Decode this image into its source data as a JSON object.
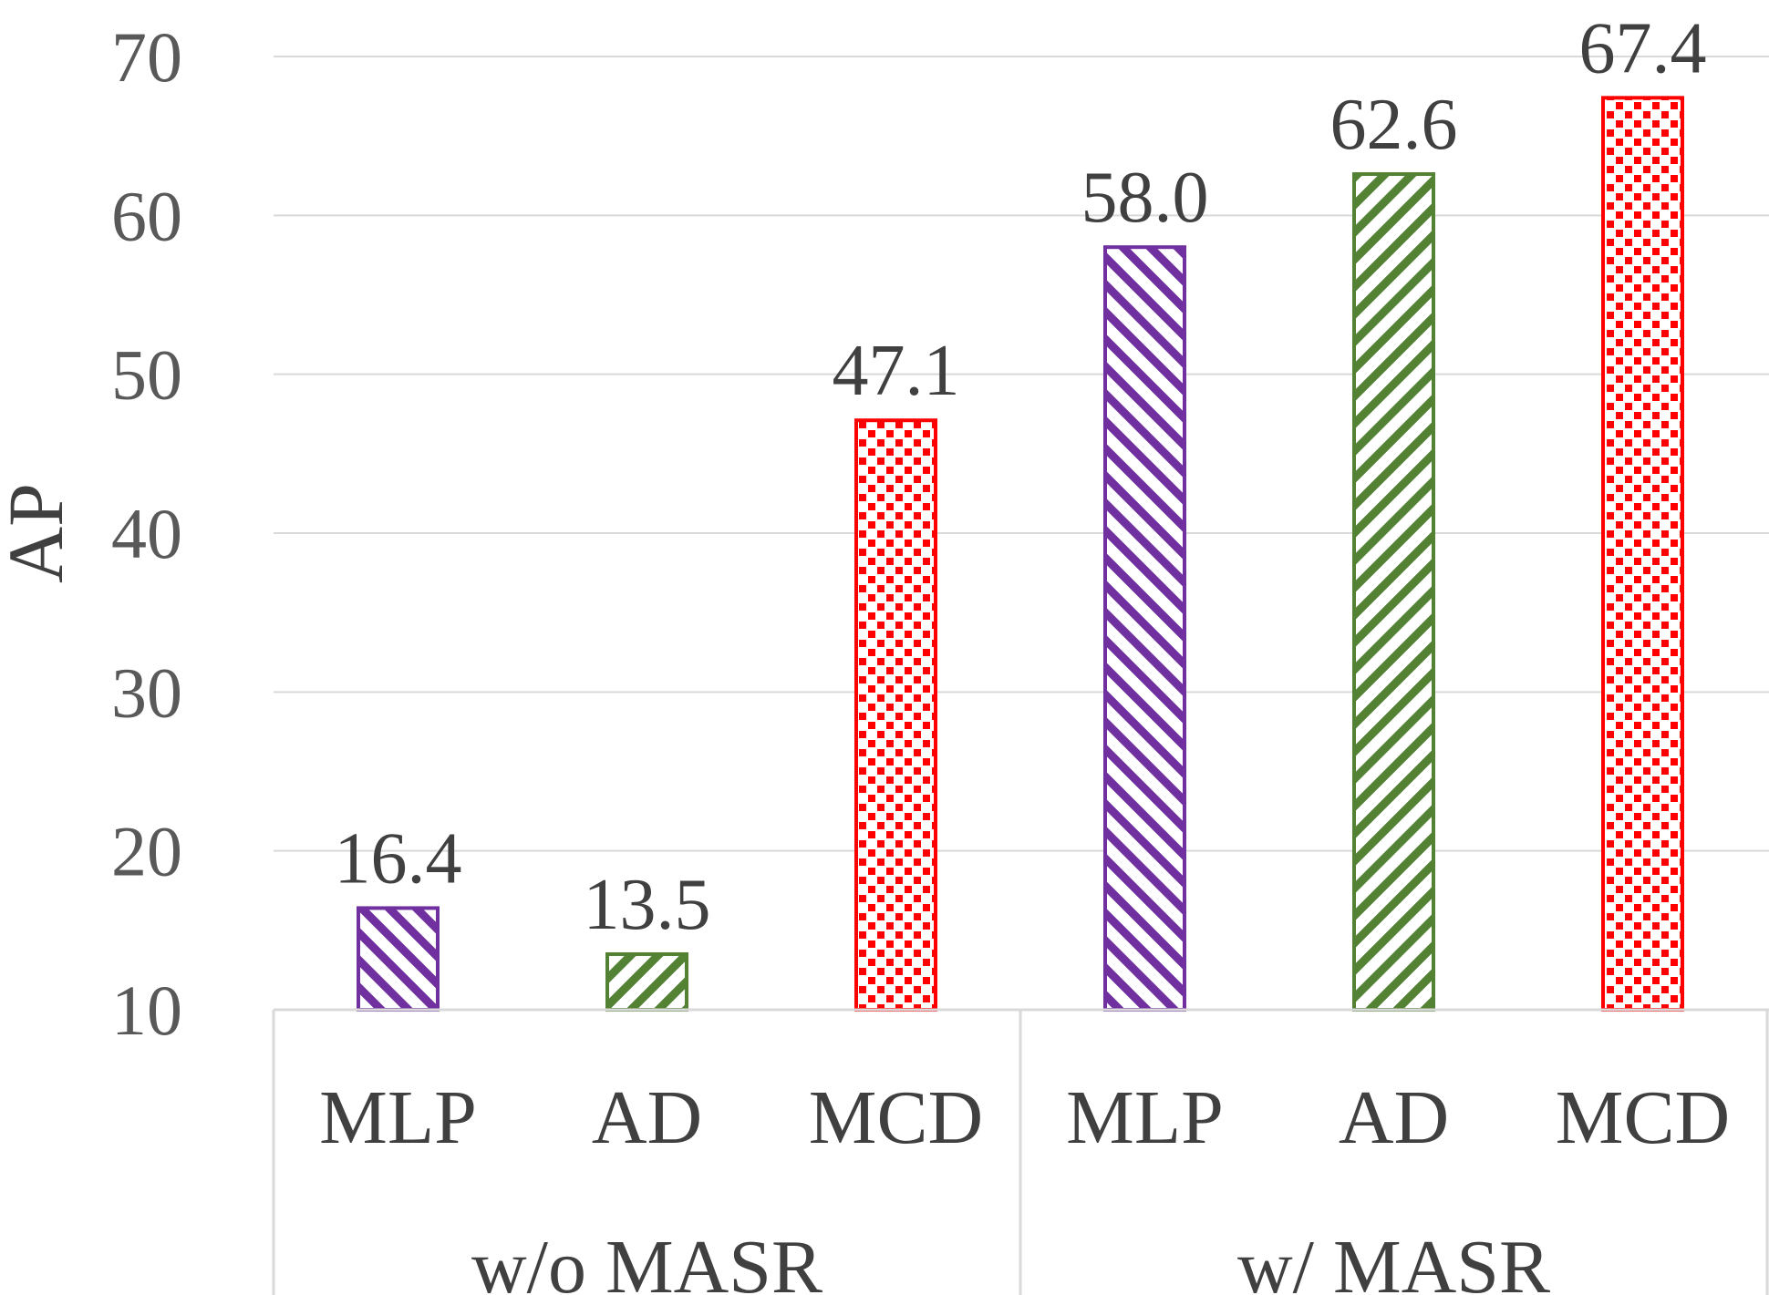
{
  "chart_data": {
    "type": "bar",
    "title": "",
    "xlabel": "",
    "ylabel": "AP",
    "ylim": [
      10,
      70
    ],
    "yticks": [
      10,
      20,
      30,
      40,
      50,
      60,
      70
    ],
    "grid": true,
    "legend": "none",
    "groups": [
      {
        "label": "w/o MASR",
        "bars": [
          {
            "category": "MLP",
            "value": 16.4,
            "value_label": "16.4",
            "color": "#7030a0",
            "pattern": "diagonal-stripes-down"
          },
          {
            "category": "AD",
            "value": 13.5,
            "value_label": "13.5",
            "color": "#548235",
            "pattern": "diagonal-stripes-up"
          },
          {
            "category": "MCD",
            "value": 47.1,
            "value_label": "47.1",
            "color": "#ff0000",
            "pattern": "dots"
          }
        ]
      },
      {
        "label": "w/ MASR",
        "bars": [
          {
            "category": "MLP",
            "value": 58.0,
            "value_label": "58.0",
            "color": "#7030a0",
            "pattern": "diagonal-stripes-down"
          },
          {
            "category": "AD",
            "value": 62.6,
            "value_label": "62.6",
            "color": "#548235",
            "pattern": "diagonal-stripes-up"
          },
          {
            "category": "MCD",
            "value": 67.4,
            "value_label": "67.4",
            "color": "#ff0000",
            "pattern": "dots"
          }
        ]
      }
    ]
  }
}
